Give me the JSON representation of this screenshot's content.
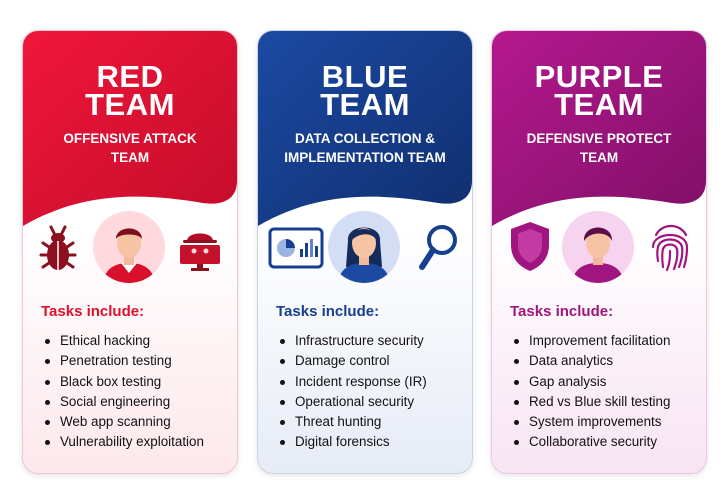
{
  "cards": [
    {
      "key": "red",
      "title_line1": "RED",
      "title_line2": "TEAM",
      "subtitle_line1": "OFFENSIVE ATTACK",
      "subtitle_line2": "TEAM",
      "tasks_label": "Tasks include:",
      "color": "#e0102e",
      "tasks": [
        "Ethical hacking",
        "Penetration testing",
        "Black box testing",
        "Social engineering",
        "Web app scanning",
        "Vulnerability exploitation"
      ],
      "icons": [
        "bug-icon",
        "avatar-man-icon",
        "hacker-computer-icon"
      ]
    },
    {
      "key": "blue",
      "title_line1": "BLUE",
      "title_line2": "TEAM",
      "subtitle_line1": "DATA COLLECTION &",
      "subtitle_line2": "IMPLEMENTATION TEAM",
      "tasks_label": "Tasks include:",
      "color": "#173f8f",
      "tasks": [
        "Infrastructure security",
        "Damage control",
        "Incident response (IR)",
        "Operational security",
        "Threat hunting",
        "Digital forensics"
      ],
      "icons": [
        "dashboard-icon",
        "avatar-woman-icon",
        "magnifier-icon"
      ]
    },
    {
      "key": "purple",
      "title_line1": "PURPLE",
      "title_line2": "TEAM",
      "subtitle_line1": "DEFENSIVE PROTECT",
      "subtitle_line2": "TEAM",
      "tasks_label": "Tasks include:",
      "color": "#a0157f",
      "tasks": [
        "Improvement facilitation",
        "Data analytics",
        "Gap analysis",
        "Red vs Blue skill testing",
        "System improvements",
        "Collaborative security"
      ],
      "icons": [
        "shield-icon",
        "avatar-person-icon",
        "fingerprint-icon"
      ]
    }
  ]
}
